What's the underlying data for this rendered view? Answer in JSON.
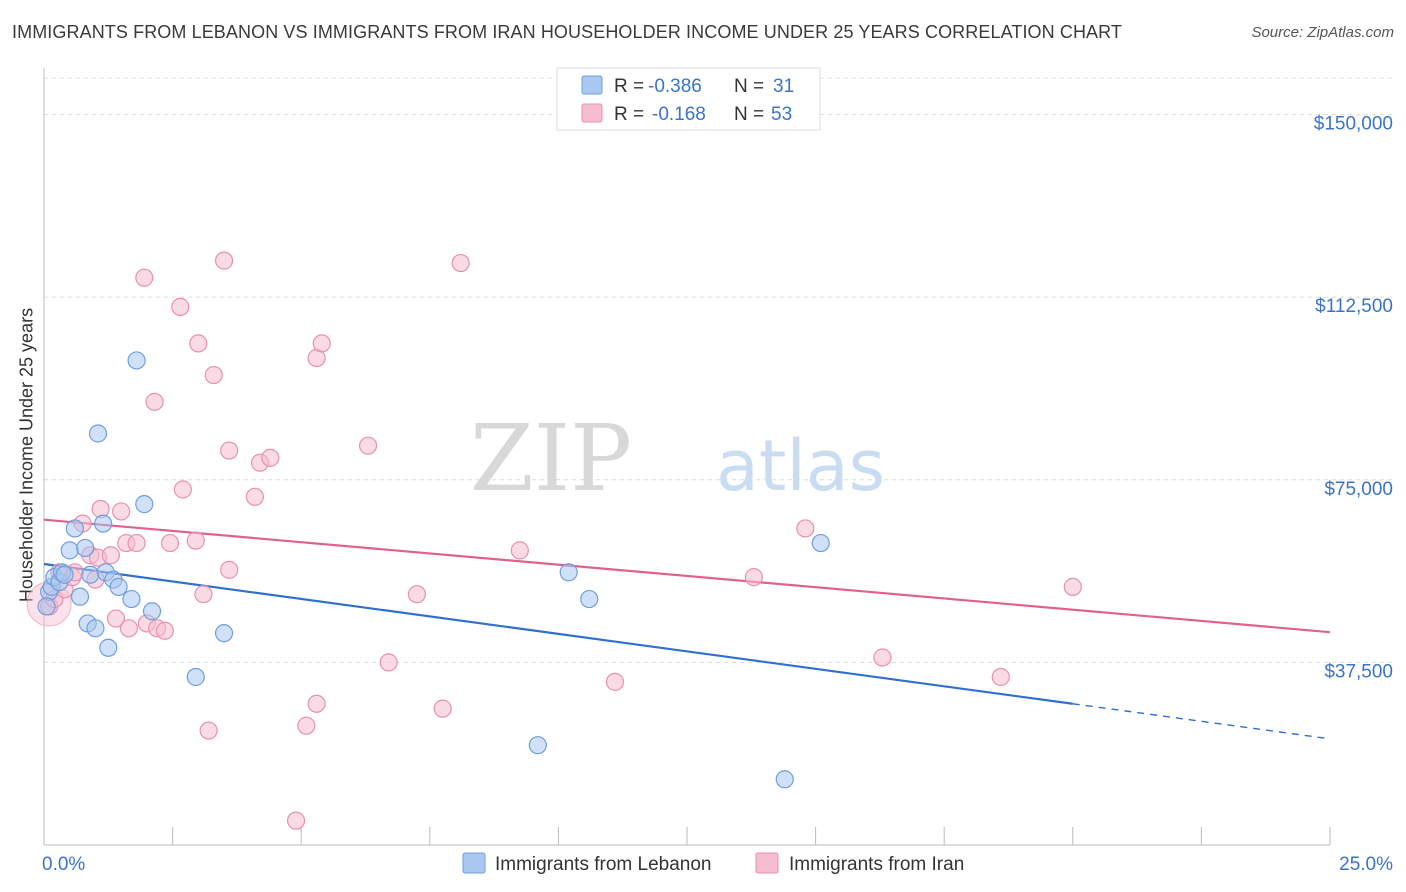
{
  "title": "IMMIGRANTS FROM LEBANON VS IMMIGRANTS FROM IRAN HOUSEHOLDER INCOME UNDER 25 YEARS CORRELATION CHART",
  "source": "Source: ZipAtlas.com",
  "watermark": {
    "zip": "ZIP",
    "atlas": "atlas"
  },
  "colors": {
    "lebanon_fill": "#a9c7f0",
    "lebanon_stroke": "#6f9fdc",
    "lebanon_line": "#2f6fd0",
    "iran_fill": "#f6bdd0",
    "iran_stroke": "#e890ad",
    "iran_line": "#e0608e",
    "axis_text": "#3a74c9",
    "grid": "#dcdcdc"
  },
  "legend_box": [
    {
      "r_label": "R =",
      "r_value": "-0.386",
      "n_label": "N =",
      "n_value": "31"
    },
    {
      "r_label": "R =",
      "r_value": "-0.168",
      "n_label": "N =",
      "n_value": "53"
    }
  ],
  "chart_data": {
    "type": "scatter",
    "title": "IMMIGRANTS FROM LEBANON VS IMMIGRANTS FROM IRAN HOUSEHOLDER INCOME UNDER 25 YEARS CORRELATION CHART",
    "xlabel": "",
    "ylabel": "Householder Income Under 25 years",
    "xlim": [
      0,
      25
    ],
    "ylim": [
      0,
      157500
    ],
    "x_tick_labels": [
      "0.0%",
      "25.0%"
    ],
    "y_ticks": [
      37500,
      75000,
      112500,
      150000
    ],
    "y_tick_labels": [
      "$37,500",
      "$75,000",
      "$112,500",
      "$150,000"
    ],
    "grid": true,
    "legend_position": "bottom-center",
    "series": [
      {
        "name": "Immigrants from Lebanon",
        "r": -0.386,
        "n": 31,
        "trend": {
          "x0": 0,
          "y0": 57700,
          "x1": 20,
          "y1": 29000,
          "dashed_to_x": 25,
          "dashed_to_y": 21800
        },
        "points": [
          [
            0.1,
            52000
          ],
          [
            0.15,
            53000
          ],
          [
            0.2,
            55000
          ],
          [
            0.3,
            54000
          ],
          [
            0.35,
            56000
          ],
          [
            0.4,
            55500
          ],
          [
            0.5,
            60500
          ],
          [
            0.6,
            65000
          ],
          [
            0.7,
            51000
          ],
          [
            0.8,
            61000
          ],
          [
            0.85,
            45500
          ],
          [
            0.9,
            55500
          ],
          [
            1.0,
            44500
          ],
          [
            1.05,
            84500
          ],
          [
            1.15,
            66000
          ],
          [
            1.2,
            56000
          ],
          [
            1.25,
            40500
          ],
          [
            1.35,
            54500
          ],
          [
            1.45,
            53000
          ],
          [
            1.7,
            50500
          ],
          [
            1.8,
            99500
          ],
          [
            1.95,
            70000
          ],
          [
            2.1,
            48000
          ],
          [
            2.95,
            34500
          ],
          [
            3.5,
            43500
          ],
          [
            9.6,
            20500
          ],
          [
            10.2,
            56000
          ],
          [
            10.6,
            50500
          ],
          [
            14.4,
            13500
          ],
          [
            15.1,
            62000
          ],
          [
            0.05,
            49000
          ]
        ]
      },
      {
        "name": "Immigrants from Iran",
        "r": -0.168,
        "n": 53,
        "trend": {
          "x0": 0,
          "y0": 66800,
          "x1": 25,
          "y1": 43700
        },
        "points": [
          [
            0.1,
            49000
          ],
          [
            0.2,
            50500
          ],
          [
            0.3,
            56000
          ],
          [
            0.4,
            52500
          ],
          [
            0.55,
            55000
          ],
          [
            0.6,
            56000
          ],
          [
            0.75,
            66000
          ],
          [
            0.9,
            59500
          ],
          [
            1.0,
            54500
          ],
          [
            1.05,
            59000
          ],
          [
            1.1,
            69000
          ],
          [
            1.3,
            59500
          ],
          [
            1.4,
            46500
          ],
          [
            1.5,
            68500
          ],
          [
            1.6,
            62000
          ],
          [
            1.65,
            44500
          ],
          [
            1.8,
            62000
          ],
          [
            1.95,
            116500
          ],
          [
            2.0,
            45500
          ],
          [
            2.15,
            91000
          ],
          [
            2.2,
            44500
          ],
          [
            2.35,
            44000
          ],
          [
            2.45,
            62000
          ],
          [
            2.65,
            110500
          ],
          [
            2.7,
            73000
          ],
          [
            2.95,
            62500
          ],
          [
            3.0,
            103000
          ],
          [
            3.1,
            51500
          ],
          [
            3.2,
            23500
          ],
          [
            3.3,
            96500
          ],
          [
            3.5,
            120000
          ],
          [
            3.6,
            81000
          ],
          [
            3.6,
            56500
          ],
          [
            4.1,
            71500
          ],
          [
            4.2,
            78500
          ],
          [
            4.4,
            79500
          ],
          [
            4.9,
            5000
          ],
          [
            5.1,
            24500
          ],
          [
            5.3,
            29000
          ],
          [
            5.3,
            100000
          ],
          [
            5.4,
            103000
          ],
          [
            6.3,
            82000
          ],
          [
            6.7,
            37500
          ],
          [
            7.25,
            51500
          ],
          [
            7.75,
            28000
          ],
          [
            8.1,
            119500
          ],
          [
            9.25,
            60500
          ],
          [
            11.1,
            33500
          ],
          [
            13.8,
            55000
          ],
          [
            14.8,
            65000
          ],
          [
            16.3,
            38500
          ],
          [
            18.6,
            34500
          ],
          [
            20.0,
            53000
          ]
        ]
      }
    ]
  }
}
